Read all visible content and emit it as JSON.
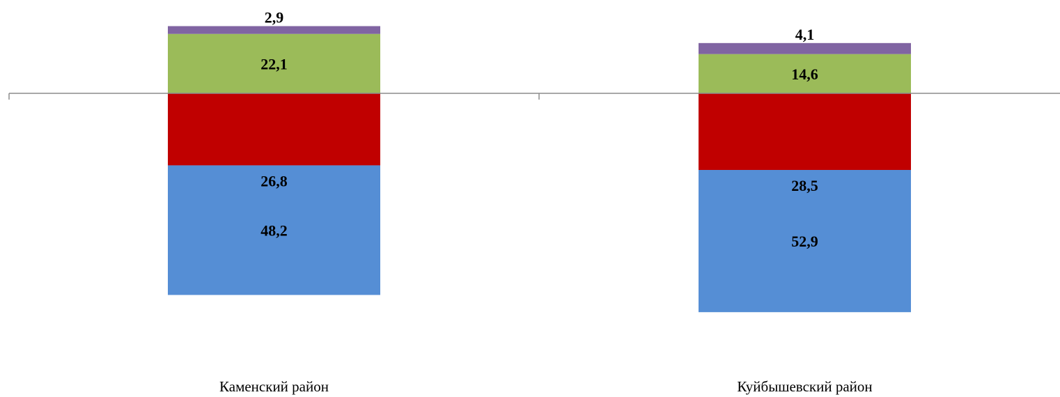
{
  "chart_data": {
    "type": "bar",
    "stacked": true,
    "baseline": "diverging",
    "categories": [
      "Каменский район",
      "Куйбышевский  район"
    ],
    "series": [
      {
        "values": [
          26.8,
          28.5
        ],
        "labels": [
          "26,8",
          "28,5"
        ],
        "color": "#C00000",
        "side": "below"
      },
      {
        "values": [
          48.2,
          52.9
        ],
        "labels": [
          "48,2",
          "52,9"
        ],
        "color": "#558ED5",
        "side": "below"
      },
      {
        "values": [
          22.1,
          14.6
        ],
        "labels": [
          "22,1",
          "14,6"
        ],
        "color": "#9BBB59",
        "side": "above"
      },
      {
        "values": [
          2.9,
          4.1
        ],
        "labels": [
          "2,9",
          "4,1"
        ],
        "color": "#8064A2",
        "side": "above"
      }
    ],
    "grid": false,
    "legend": "none"
  }
}
